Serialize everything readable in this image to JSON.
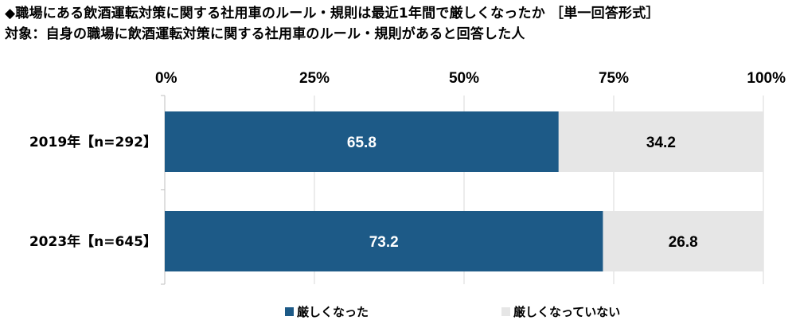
{
  "header": {
    "title": "◆職場にある飲酒運転対策に関する社用車のルール・規則は最近1年間で厳しくなったか ［単一回答形式］",
    "subtitle": "対象：自身の職場に飲酒運転対策に関する社用車のルール・規則があると回答した人"
  },
  "chart_data": {
    "type": "bar",
    "orientation": "horizontal",
    "stacked": true,
    "percent_scale": true,
    "xlim": [
      0,
      100
    ],
    "x_ticks": [
      "0%",
      "25%",
      "50%",
      "75%",
      "100%"
    ],
    "categories": [
      "2019年【n=292】",
      "2023年【n=645】"
    ],
    "series": [
      {
        "name": "厳しくなった",
        "values": [
          65.8,
          73.2
        ],
        "color": "#1d5a87",
        "label_color": "#ffffff"
      },
      {
        "name": "厳しくなっていない",
        "values": [
          34.2,
          26.8
        ],
        "color": "#e6e6e6",
        "label_color": "#000000"
      }
    ],
    "grid": true,
    "legend_position": "bottom"
  }
}
